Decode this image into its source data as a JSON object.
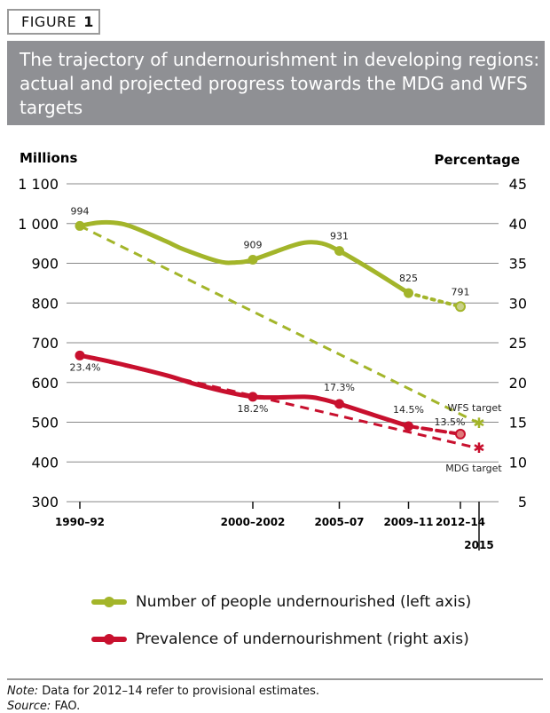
{
  "figure": {
    "label": "FIGURE",
    "number": "1"
  },
  "title": "The trajectory of undernourishment in developing regions: actual and projected progress towards the MDG and WFS targets",
  "chart_data": {
    "type": "line",
    "title": "The trajectory of undernourishment in developing regions: actual and projected progress towards the MDG and WFS targets",
    "left_axis": {
      "label": "Millions",
      "ylim": [
        300,
        1100
      ],
      "ticks": [
        "1 100",
        "1 000",
        "900",
        "800",
        "700",
        "600",
        "500",
        "400",
        "300"
      ],
      "tick_values": [
        1100,
        1000,
        900,
        800,
        700,
        600,
        500,
        400,
        300
      ]
    },
    "right_axis": {
      "label": "Percentage",
      "ylim": [
        5,
        45
      ],
      "ticks": [
        "45",
        "40",
        "35",
        "30",
        "25",
        "20",
        "15",
        "10",
        "5"
      ],
      "tick_values": [
        45,
        40,
        35,
        30,
        25,
        20,
        15,
        10,
        5
      ]
    },
    "x_ticks": [
      {
        "label": "1990–92",
        "x": 1991
      },
      {
        "label": "2000–2002",
        "x": 2001
      },
      {
        "label": "2005–07",
        "x": 2006
      },
      {
        "label": "2009–11",
        "x": 2010
      },
      {
        "label": "2012–14",
        "x": 2013
      },
      {
        "label": "2015",
        "x": 2015
      }
    ],
    "grid": true,
    "colors": {
      "number": "#a3b52a",
      "prevalence": "#c8102e"
    },
    "series": [
      {
        "name": "Number of people undernourished (left axis)",
        "axis": "left",
        "x": [
          1991,
          1992,
          1993,
          1994,
          1996,
          1997,
          1999,
          2000,
          2001,
          2003,
          2004,
          2005,
          2006,
          2008,
          2010
        ],
        "values": [
          994,
          1002,
          1002,
          992,
          955,
          935,
          905,
          902,
          909,
          940,
          952,
          950,
          931,
          880,
          825
        ],
        "projection": {
          "x": [
            2010,
            2013
          ],
          "values": [
            825,
            791
          ]
        },
        "labeled_points": [
          {
            "x": 1991,
            "value": 994,
            "label": "994"
          },
          {
            "x": 2001,
            "value": 909,
            "label": "909"
          },
          {
            "x": 2006,
            "value": 931,
            "label": "931"
          },
          {
            "x": 2010,
            "value": 825,
            "label": "825"
          },
          {
            "x": 2013,
            "value": 791,
            "label": "791"
          }
        ],
        "target": {
          "name": "WFS target",
          "x": 2015,
          "value": 497,
          "from": {
            "x": 1991,
            "value": 994
          }
        }
      },
      {
        "name": "Prevalence of undernourishment (right axis)",
        "axis": "right",
        "x": [
          1991,
          1993,
          1996,
          1998,
          2001,
          2004,
          2005,
          2006,
          2008,
          2010
        ],
        "values": [
          23.4,
          22.5,
          20.9,
          19.6,
          18.2,
          18.2,
          17.9,
          17.3,
          15.9,
          14.5
        ],
        "projection": {
          "x": [
            2010,
            2013
          ],
          "values": [
            14.5,
            13.5
          ]
        },
        "labeled_points": [
          {
            "x": 1991,
            "value": 23.4,
            "label": "23.4%"
          },
          {
            "x": 2001,
            "value": 18.2,
            "label": "18.2%"
          },
          {
            "x": 2006,
            "value": 17.3,
            "label": "17.3%"
          },
          {
            "x": 2010,
            "value": 14.5,
            "label": "14.5%"
          },
          {
            "x": 2013,
            "value": 13.5,
            "label": "13.5%"
          }
        ],
        "target": {
          "name": "MDG target",
          "x": 2015,
          "value": 11.7,
          "from": {
            "x": 1991,
            "value": 23.4
          }
        }
      }
    ],
    "legend": "bottom"
  },
  "legend": [
    {
      "label": "Number of people undernourished (left axis)",
      "color": "#a3b52a"
    },
    {
      "label": "Prevalence of undernourishment (right axis)",
      "color": "#c8102e"
    }
  ],
  "notes": {
    "note_label": "Note:",
    "note_text": " Data for 2012–14 refer to provisional estimates.",
    "source_label": "Source:",
    "source_text": " FAO."
  }
}
